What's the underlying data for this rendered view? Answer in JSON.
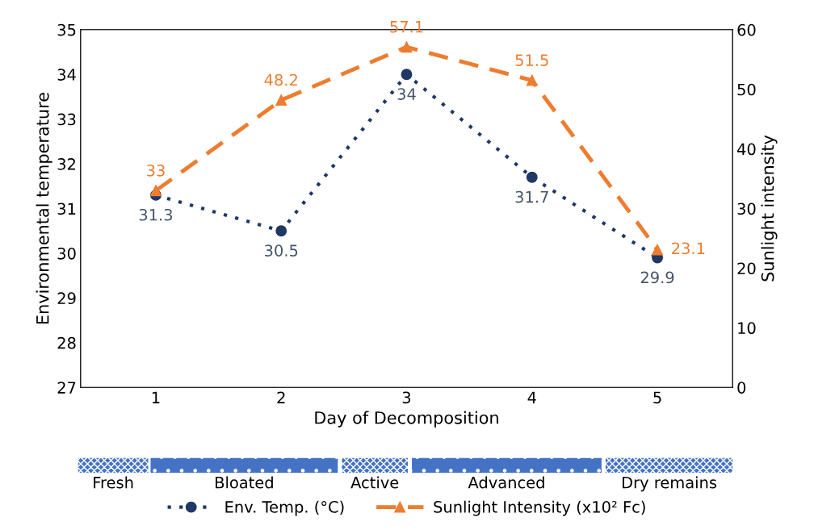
{
  "chart_data": {
    "type": "line",
    "xlabel": "Day of Decomposition",
    "ylabel": "Environmental temperature",
    "y2label": "Sunlight intensity",
    "categories": [
      "1",
      "2",
      "3",
      "4",
      "5"
    ],
    "series": [
      {
        "name": "Env. Temp. (°C)",
        "color": "#1f3864",
        "values": [
          31.3,
          30.5,
          34,
          31.7,
          29.9
        ],
        "marker": "circle",
        "line_style": "dotted"
      },
      {
        "name": "Sunlight Intensity (x10² Fc)",
        "color": "#ed7d31",
        "values": [
          33,
          48.2,
          57.1,
          51.5,
          23.1
        ],
        "marker": "triangle",
        "line_style": "dashed",
        "axis": "y2"
      }
    ],
    "ylim": [
      27,
      35
    ],
    "yticks": [
      27,
      28,
      29,
      30,
      31,
      32,
      33,
      34,
      35
    ],
    "y2lim": [
      0,
      60
    ],
    "y2ticks": [
      0,
      10,
      20,
      30,
      40,
      50,
      60
    ],
    "data_labels": true,
    "grid": false,
    "legend": "bottom",
    "annotations": [
      "Fresh",
      "Bloated",
      "Active",
      "Advanced",
      "Dry remains"
    ]
  }
}
